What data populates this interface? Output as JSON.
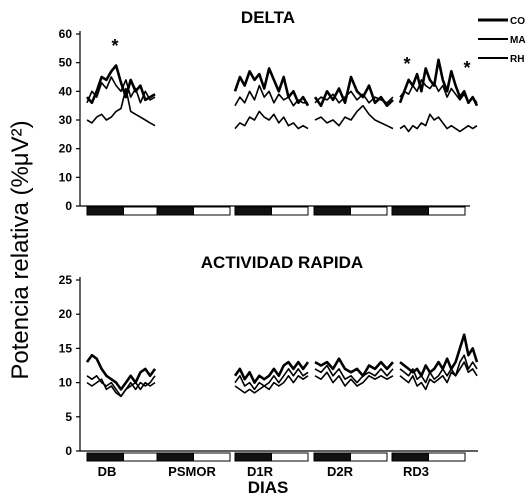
{
  "ylabel": "Potencia relativa (%μV²)",
  "xlabel": "DIAS",
  "legend": [
    "CO",
    "MA",
    "RH"
  ],
  "categories": [
    "DB",
    "PSMOR",
    "D1R",
    "D2R",
    "RD3"
  ],
  "chart_data": [
    {
      "type": "line",
      "title": "DELTA",
      "ylim": [
        0,
        60
      ],
      "yticks": [
        "0",
        "10",
        "20",
        "30",
        "40",
        "50",
        "60"
      ],
      "categories": [
        "DB",
        "PSMOR",
        "D1R",
        "D2R",
        "RD3"
      ],
      "annotations": [
        "*",
        "*",
        "*"
      ],
      "series": [
        {
          "name": "CO",
          "segments": [
            [
              38,
              36,
              40,
              45,
              44,
              47,
              49,
              43,
              38,
              44,
              40,
              42,
              37,
              38,
              39
            ],
            [
              40,
              45,
              42,
              47,
              44,
              46,
              41,
              48,
              44,
              40,
              45,
              38,
              40,
              36,
              38,
              35
            ],
            [
              38,
              35,
              40,
              37,
              41,
              36,
              45,
              40,
              38,
              42,
              36,
              38,
              35,
              37
            ],
            [
              36,
              40,
              44,
              42,
              46,
              40,
              48,
              44,
              42,
              51,
              44,
              40,
              47,
              42,
              38,
              40,
              36,
              38,
              35
            ]
          ]
        },
        {
          "name": "MA",
          "segments": [
            [
              36,
              40,
              38,
              43,
              41,
              45,
              42,
              40,
              44,
              38,
              41,
              36,
              40,
              37,
              38
            ],
            [
              35,
              38,
              36,
              40,
              37,
              42,
              38,
              40,
              36,
              39,
              37,
              38,
              35,
              37,
              36,
              36
            ],
            [
              36,
              38,
              37,
              39,
              36,
              38,
              40,
              37,
              39,
              36,
              38,
              37,
              36,
              38
            ],
            [
              38,
              40,
              39,
              42,
              40,
              44,
              42,
              41,
              43,
              40,
              42,
              38,
              41,
              39,
              37,
              39,
              36,
              38,
              36
            ]
          ]
        },
        {
          "name": "RH",
          "segments": [
            [
              30,
              29,
              31,
              32,
              30,
              31,
              33,
              34,
              41,
              33,
              32,
              31,
              30,
              29,
              28
            ],
            [
              27,
              29,
              28,
              31,
              30,
              33,
              31,
              30,
              32,
              29,
              31,
              28,
              29,
              27,
              28,
              27
            ],
            [
              30,
              31,
              29,
              30,
              28,
              31,
              30,
              33,
              35,
              32,
              30,
              29,
              28,
              27
            ],
            [
              27,
              28,
              26,
              28,
              27,
              29,
              28,
              32,
              30,
              31,
              29,
              27,
              28,
              27,
              26,
              27,
              28,
              27,
              28
            ]
          ]
        }
      ]
    },
    {
      "type": "line",
      "title": "ACTIVIDAD RAPIDA",
      "ylim": [
        0,
        25
      ],
      "yticks": [
        "0",
        "5",
        "10",
        "15",
        "20",
        "25"
      ],
      "categories": [
        "DB",
        "PSMOR",
        "D1R",
        "D2R",
        "RD3"
      ],
      "series": [
        {
          "name": "CO",
          "segments": [
            [
              13,
              14,
              13.5,
              12,
              11,
              10.5,
              10,
              9,
              10,
              11,
              10,
              11.5,
              12,
              11,
              12
            ],
            [
              11,
              12,
              10.5,
              11.5,
              10,
              11,
              10.5,
              11,
              12,
              11,
              12.5,
              13,
              12,
              13,
              12,
              13
            ],
            [
              13,
              12.5,
              13,
              12,
              13.5,
              12,
              11.5,
              12,
              11,
              12.5,
              12,
              13,
              12,
              13
            ],
            [
              13,
              12.5,
              12,
              11.5,
              12,
              11,
              12.5,
              11.5,
              12,
              13,
              12,
              13.5,
              12,
              13,
              15,
              17,
              14,
              15,
              13
            ]
          ]
        },
        {
          "name": "MA",
          "segments": [
            [
              11,
              10.5,
              11,
              10,
              9.5,
              10,
              9,
              8,
              9,
              10,
              9,
              10,
              9.5,
              10,
              11
            ],
            [
              10,
              11,
              9.5,
              10,
              9,
              10,
              9.5,
              10,
              11,
              10,
              11,
              12,
              11,
              12,
              11,
              11.5
            ],
            [
              12,
              11.5,
              12.5,
              11,
              12,
              10.5,
              11,
              10,
              11,
              11.5,
              11,
              12,
              11,
              12
            ],
            [
              12,
              11.5,
              11,
              12,
              10.5,
              11,
              10,
              11.5,
              10.5,
              11,
              12,
              11,
              12,
              11,
              13,
              14,
              12,
              13,
              12
            ]
          ]
        },
        {
          "name": "RH",
          "segments": [
            [
              10,
              9.5,
              10,
              10.5,
              9,
              9.5,
              8.5,
              8,
              9,
              9.5,
              10,
              9,
              10,
              9.5,
              10
            ],
            [
              9.5,
              9,
              8.5,
              9,
              8.5,
              9,
              9.5,
              9,
              10,
              9.5,
              10,
              11,
              10,
              11,
              10.5,
              11
            ],
            [
              11,
              10.5,
              11.5,
              10,
              11,
              9.5,
              10.5,
              9.5,
              10,
              11,
              10.5,
              11,
              10.5,
              11
            ],
            [
              11,
              10.5,
              10,
              11,
              9.5,
              10,
              9,
              10.5,
              10,
              10.5,
              11,
              10,
              11.5,
              11,
              12,
              13,
              11.5,
              12,
              11
            ]
          ]
        }
      ]
    }
  ]
}
